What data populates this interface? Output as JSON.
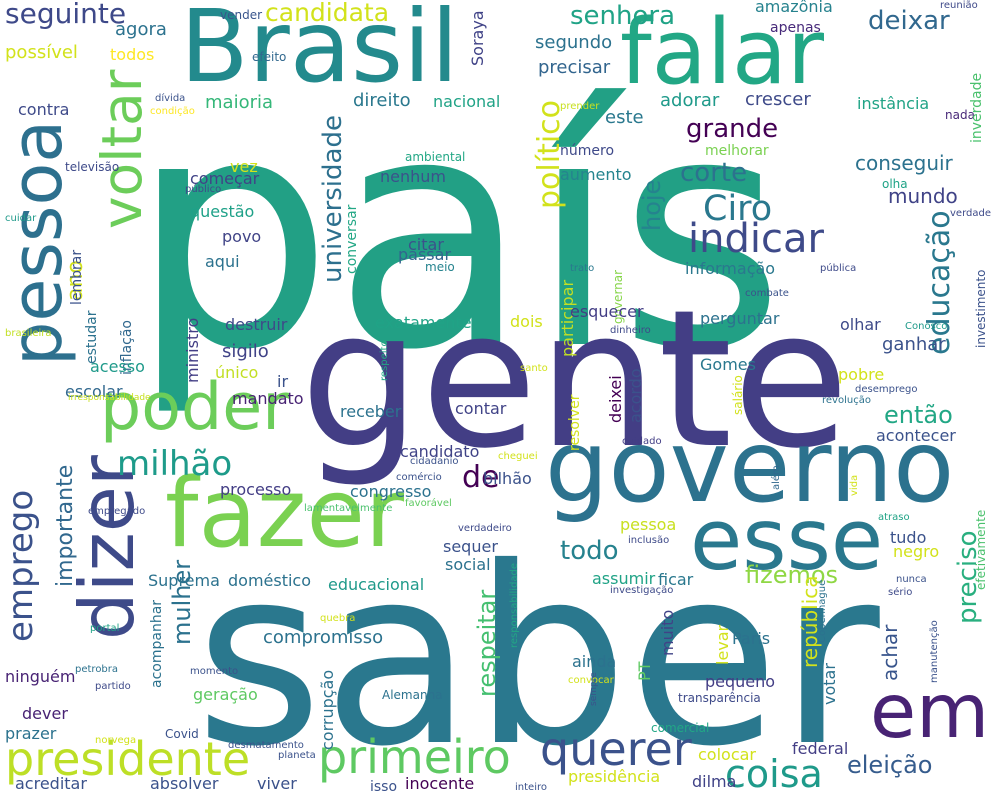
{
  "cloud": {
    "words": [
      {
        "text": "país",
        "color": "#22a085"
      },
      {
        "text": "gente",
        "color": "#433e85"
      },
      {
        "text": "saber",
        "color": "#2a788e"
      },
      {
        "text": "governo",
        "color": "#2c728e"
      },
      {
        "text": "fazer",
        "color": "#7ad151"
      },
      {
        "text": "Brasil",
        "color": "#238a8d"
      },
      {
        "text": "falar",
        "color": "#22a785"
      },
      {
        "text": "pessoa",
        "color": "#2d708e"
      },
      {
        "text": "dizer",
        "color": "#3e4a89"
      },
      {
        "text": "esse",
        "color": "#2a788e"
      },
      {
        "text": "em",
        "color": "#482374"
      },
      {
        "text": "poder",
        "color": "#6ccd5a"
      },
      {
        "text": "voltar",
        "color": "#6ccd5a"
      },
      {
        "text": "presidente",
        "color": "#bddf26"
      },
      {
        "text": "primeiro",
        "color": "#5ec962"
      },
      {
        "text": "querer",
        "color": "#3b528b"
      },
      {
        "text": "coisa",
        "color": "#1f9a8a"
      },
      {
        "text": "indicar",
        "color": "#3e4a89"
      },
      {
        "text": "Ciro",
        "color": "#2a788e"
      },
      {
        "text": "milhão",
        "color": "#1e9b8a"
      },
      {
        "text": "emprego",
        "color": "#3b528b"
      },
      {
        "text": "educação",
        "color": "#2a788e"
      },
      {
        "text": "preciso",
        "color": "#29af7f"
      },
      {
        "text": "político",
        "color": "#d2e21b"
      },
      {
        "text": "universidade",
        "color": "#2d708e"
      },
      {
        "text": "senhora",
        "color": "#20a386"
      },
      {
        "text": "candidata",
        "color": "#d2e21b"
      },
      {
        "text": "seguinte",
        "color": "#3e4989"
      },
      {
        "text": "deixar",
        "color": "#31688e"
      },
      {
        "text": "grande",
        "color": "#440154"
      },
      {
        "text": "corte",
        "color": "#2c728e"
      },
      {
        "text": "hoje",
        "color": "#25838e"
      },
      {
        "text": "todo",
        "color": "#26828e"
      },
      {
        "text": "respeitar",
        "color": "#44bf70"
      },
      {
        "text": "de",
        "color": "#440154"
      },
      {
        "text": "mulher",
        "color": "#2c728e"
      },
      {
        "text": "importante",
        "color": "#31688e"
      },
      {
        "text": "fizemos",
        "color": "#8fd744"
      },
      {
        "text": "eleição",
        "color": "#365c8d"
      },
      {
        "text": "conseguir",
        "color": "#2c728e"
      },
      {
        "text": "mundo",
        "color": "#404387"
      },
      {
        "text": "então",
        "color": "#22a785"
      },
      {
        "text": "ano",
        "color": "#d2e21b"
      },
      {
        "text": "república",
        "color": "#d2e21b"
      },
      {
        "text": "achar",
        "color": "#39558c"
      },
      {
        "text": "segundo",
        "color": "#2c728e"
      },
      {
        "text": "precisar",
        "color": "#32658e"
      },
      {
        "text": "amazônia",
        "color": "#26828e"
      },
      {
        "text": "apenas",
        "color": "#472a7a"
      },
      {
        "text": "adorar",
        "color": "#1f9a8a"
      },
      {
        "text": "este",
        "color": "#2a788e"
      },
      {
        "text": "crescer",
        "color": "#3e4a89"
      },
      {
        "text": "instância",
        "color": "#20a386"
      },
      {
        "text": "direito",
        "color": "#2a788e"
      },
      {
        "text": "nacional",
        "color": "#20a386"
      },
      {
        "text": "maioria",
        "color": "#35b779"
      },
      {
        "text": "agora",
        "color": "#2c728e"
      },
      {
        "text": "possível",
        "color": "#d2e21b"
      },
      {
        "text": "todos",
        "color": "#fde725"
      },
      {
        "text": "contra",
        "color": "#3e4a89"
      },
      {
        "text": "vender",
        "color": "#39558c"
      },
      {
        "text": "efeito",
        "color": "#31688e"
      },
      {
        "text": "reunião",
        "color": "#3e4989"
      },
      {
        "text": "Soraya",
        "color": "#404387"
      },
      {
        "text": "nada",
        "color": "#482878"
      },
      {
        "text": "inverdade",
        "color": "#4ac16d"
      },
      {
        "text": "número",
        "color": "#3e4989"
      },
      {
        "text": "aumento",
        "color": "#25848e"
      },
      {
        "text": "melhorar",
        "color": "#7ad151"
      },
      {
        "text": "conversar",
        "color": "#22a785"
      },
      {
        "text": "ambiental",
        "color": "#22a785"
      },
      {
        "text": "participar",
        "color": "#c2df23"
      },
      {
        "text": "governar",
        "color": "#86d549"
      },
      {
        "text": "informação",
        "color": "#2a788e"
      },
      {
        "text": "citar",
        "color": "#3b528b"
      },
      {
        "text": "passar",
        "color": "#32658e"
      },
      {
        "text": "meio",
        "color": "#25838e"
      },
      {
        "text": "trato",
        "color": "#2a788e"
      },
      {
        "text": "pública",
        "color": "#3e4a89"
      },
      {
        "text": "combate",
        "color": "#3b528b"
      },
      {
        "text": "olha",
        "color": "#20a386"
      },
      {
        "text": "verdade",
        "color": "#3e4a89"
      },
      {
        "text": "começar",
        "color": "#404387"
      },
      {
        "text": "vez",
        "color": "#d2e21b"
      },
      {
        "text": "questão",
        "color": "#1fa188"
      },
      {
        "text": "povo",
        "color": "#414487"
      },
      {
        "text": "aqui",
        "color": "#2c728e"
      },
      {
        "text": "nenhum",
        "color": "#3b528b"
      },
      {
        "text": "televisão",
        "color": "#3e4a89"
      },
      {
        "text": "público",
        "color": "#3e4a89"
      },
      {
        "text": "dívida",
        "color": "#3b528b"
      },
      {
        "text": "condição",
        "color": "#fde725"
      },
      {
        "text": "cuidar",
        "color": "#1f9a8a"
      },
      {
        "text": "estudar",
        "color": "#2c728e"
      },
      {
        "text": "lembrar",
        "color": "#3b528b"
      },
      {
        "text": "inflação",
        "color": "#31688e"
      },
      {
        "text": "ministro",
        "color": "#433e85"
      },
      {
        "text": "destruir",
        "color": "#3e4a89"
      },
      {
        "text": "exatamente",
        "color": "#20a386"
      },
      {
        "text": "dois",
        "color": "#d2e21b"
      },
      {
        "text": "esquecer",
        "color": "#433e85"
      },
      {
        "text": "perguntar",
        "color": "#2c728e"
      },
      {
        "text": "olhar",
        "color": "#3e4a89"
      },
      {
        "text": "investimento",
        "color": "#3b528b"
      },
      {
        "text": "prender",
        "color": "#c8e020"
      },
      {
        "text": "dinheiro",
        "color": "#3e4a89"
      },
      {
        "text": "Conosco",
        "color": "#1f9a8a"
      },
      {
        "text": "brasileira",
        "color": "#c2df23"
      },
      {
        "text": "sigilo",
        "color": "#404387"
      },
      {
        "text": "acesso",
        "color": "#1f9a8a"
      },
      {
        "text": "único",
        "color": "#c2df23"
      },
      {
        "text": "escolar",
        "color": "#31688e"
      },
      {
        "text": "ir",
        "color": "#3b528b"
      },
      {
        "text": "mandato",
        "color": "#482374"
      },
      {
        "text": "irresponsabilidade",
        "color": "#c8e020"
      },
      {
        "text": "respeito",
        "color": "#22a785"
      },
      {
        "text": "santo",
        "color": "#d2e21b"
      },
      {
        "text": "Gomes",
        "color": "#2a788e"
      },
      {
        "text": "pobre",
        "color": "#d2e21b"
      },
      {
        "text": "desemprego",
        "color": "#3b528b"
      },
      {
        "text": "revolução",
        "color": "#2c728e"
      },
      {
        "text": "salário",
        "color": "#d2e21b"
      },
      {
        "text": "ganhar",
        "color": "#3b528b"
      },
      {
        "text": "acontecer",
        "color": "#3b528b"
      },
      {
        "text": "receber",
        "color": "#2c728e"
      },
      {
        "text": "contar",
        "color": "#404387"
      },
      {
        "text": "resolver",
        "color": "#d2e21b"
      },
      {
        "text": "deixei",
        "color": "#440154"
      },
      {
        "text": "acordo",
        "color": "#3b528b"
      },
      {
        "text": "cuidado",
        "color": "#433e85"
      },
      {
        "text": "processo",
        "color": "#433e85"
      },
      {
        "text": "congresso",
        "color": "#2c728e"
      },
      {
        "text": "candidato",
        "color": "#404387"
      },
      {
        "text": "bilhão",
        "color": "#3b528b"
      },
      {
        "text": "cidadanio",
        "color": "#3b528b"
      },
      {
        "text": "comércio",
        "color": "#3b528b"
      },
      {
        "text": "cheguei",
        "color": "#d2e21b"
      },
      {
        "text": "lamentavelmente",
        "color": "#4ac16d"
      },
      {
        "text": "favorável",
        "color": "#5ec962"
      },
      {
        "text": "empregado",
        "color": "#3e4a89"
      },
      {
        "text": "verdadeiro",
        "color": "#3e4a89"
      },
      {
        "text": "além",
        "color": "#31688e"
      },
      {
        "text": "vida",
        "color": "#d2e21b"
      },
      {
        "text": "atraso",
        "color": "#20a386"
      },
      {
        "text": "sequer",
        "color": "#3b528b"
      },
      {
        "text": "social",
        "color": "#2c728e"
      },
      {
        "text": "responsabilidade",
        "color": "#22a785"
      },
      {
        "text": "pessoa",
        "color": "#c8e020"
      },
      {
        "text": "inclusão",
        "color": "#3e4a89"
      },
      {
        "text": "tudo",
        "color": "#3b528b"
      },
      {
        "text": "negro",
        "color": "#d2e21b"
      },
      {
        "text": "efetivamente",
        "color": "#4ac16d"
      },
      {
        "text": "Suprema",
        "color": "#2c728e"
      },
      {
        "text": "doméstico",
        "color": "#2c728e"
      },
      {
        "text": "educacional",
        "color": "#1f9a8a"
      },
      {
        "text": "assumir",
        "color": "#20a386"
      },
      {
        "text": "ficar",
        "color": "#2a788e"
      },
      {
        "text": "investigação",
        "color": "#3e4a89"
      },
      {
        "text": "nunca",
        "color": "#3b528b"
      },
      {
        "text": "sério",
        "color": "#3e4a89"
      },
      {
        "text": "compromisso",
        "color": "#2c728e"
      },
      {
        "text": "acompanhar",
        "color": "#2c728e"
      },
      {
        "text": "quebra",
        "color": "#d2e21b"
      },
      {
        "text": "Paris",
        "color": "#2c728e"
      },
      {
        "text": "muito",
        "color": "#404387"
      },
      {
        "text": "portal",
        "color": "#20a386"
      },
      {
        "text": "petrobra",
        "color": "#2c728e"
      },
      {
        "text": "Copenhague",
        "color": "#2c728e"
      },
      {
        "text": "manutenção",
        "color": "#3b528b"
      },
      {
        "text": "levar",
        "color": "#d2e21b"
      },
      {
        "text": "ninguém",
        "color": "#482374"
      },
      {
        "text": "partido",
        "color": "#3e4a89"
      },
      {
        "text": "corrupção",
        "color": "#2c728e"
      },
      {
        "text": "geração",
        "color": "#5ec962"
      },
      {
        "text": "momento",
        "color": "#3b528b"
      },
      {
        "text": "convocar",
        "color": "#d2e21b"
      },
      {
        "text": "ainda",
        "color": "#2c728e"
      },
      {
        "text": "PT",
        "color": "#5ec962"
      },
      {
        "text": "pequeno",
        "color": "#433e85"
      },
      {
        "text": "votar",
        "color": "#2c728e"
      },
      {
        "text": "dever",
        "color": "#482374"
      },
      {
        "text": "prazer",
        "color": "#2c728e"
      },
      {
        "text": "norvega",
        "color": "#d2e21b"
      },
      {
        "text": "Alemanha",
        "color": "#2c728e"
      },
      {
        "text": "sempre",
        "color": "#3b528b"
      },
      {
        "text": "transparência",
        "color": "#3e4a89"
      },
      {
        "text": "Covid",
        "color": "#3b528b"
      },
      {
        "text": "comercial",
        "color": "#22a785"
      },
      {
        "text": "desmatamento",
        "color": "#3b528b"
      },
      {
        "text": "planeta",
        "color": "#3b528b"
      },
      {
        "text": "federal",
        "color": "#433e85"
      },
      {
        "text": "colocar",
        "color": "#d2e21b"
      },
      {
        "text": "dilma",
        "color": "#404387"
      },
      {
        "text": "acreditar",
        "color": "#3b528b"
      },
      {
        "text": "absolver",
        "color": "#3b528b"
      },
      {
        "text": "viver",
        "color": "#3b528b"
      },
      {
        "text": "isso",
        "color": "#3b528b"
      },
      {
        "text": "inocente",
        "color": "#440154"
      },
      {
        "text": "inteiro",
        "color": "#3b528b"
      },
      {
        "text": "presidência",
        "color": "#d2e21b"
      }
    ]
  }
}
